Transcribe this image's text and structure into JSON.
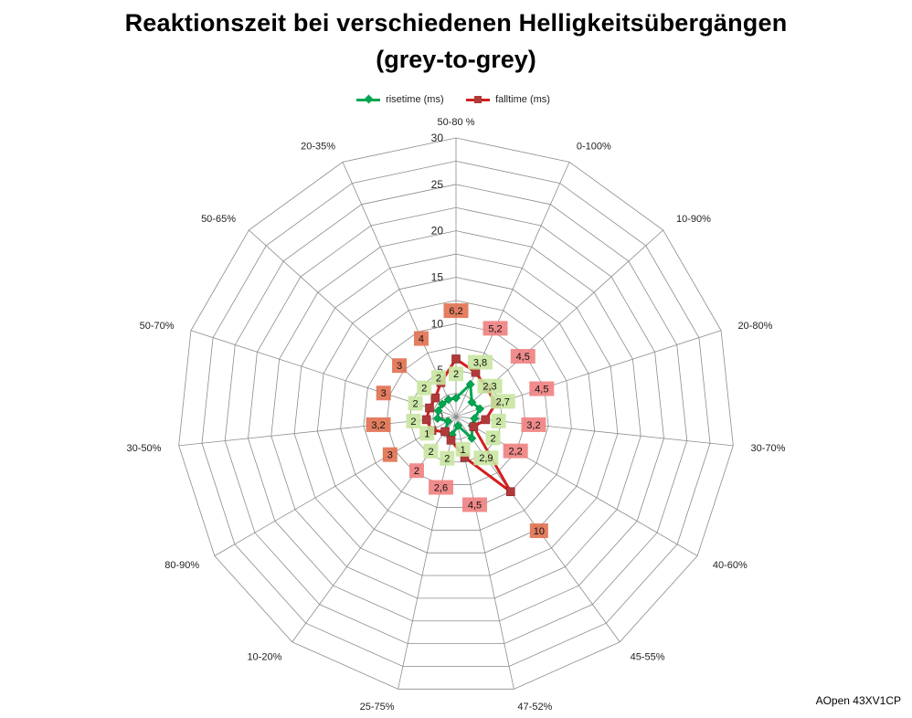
{
  "chart_data": {
    "type": "radar",
    "title": "Reaktionszeit bei verschiedenen Helligkeitsübergängen",
    "subtitle": "(grey-to-grey)",
    "categories": [
      "50-80 %",
      "0-100%",
      "10-90%",
      "20-80%",
      "30-70%",
      "40-60%",
      "45-55%",
      "47-52%",
      "25-75%",
      "10-20%",
      "80-90%",
      "30-50%",
      "50-70%",
      "50-65%",
      "20-35%"
    ],
    "rlim": [
      0,
      30
    ],
    "rticks": [
      0,
      5,
      10,
      15,
      20,
      25,
      30
    ],
    "rtick_labels": [
      "0",
      "5",
      "10",
      "15",
      "20",
      "25",
      "30"
    ],
    "grid": true,
    "legend_position": "top",
    "series": [
      {
        "name": "risetime (ms)",
        "color": "#00a651",
        "marker": "diamond",
        "label_bg": "#c8e6a0",
        "values": [
          2,
          3.8,
          2.3,
          2.7,
          2,
          2,
          2.9,
          1,
          2,
          2,
          1,
          2,
          2,
          2,
          2
        ],
        "labels": [
          "2",
          "3,8",
          "2,3",
          "2,7",
          "2",
          "2",
          "2,9",
          "1",
          "2",
          "2",
          "1",
          "2",
          "2",
          "2",
          "2"
        ]
      },
      {
        "name": "falltime (ms)",
        "color": "#d21f1f",
        "marker": "square",
        "label_bg": "#f08080",
        "label_bg_alt": "#e07050",
        "values": [
          6.2,
          5.2,
          4.5,
          4.5,
          3.2,
          2.2,
          10,
          4.5,
          2.6,
          2,
          3,
          3.2,
          3,
          3,
          4
        ],
        "labels": [
          "6,2",
          "5,2",
          "4,5",
          "4,5",
          "3,2",
          "2,2",
          "10",
          "4,5",
          "2,6",
          "2",
          "3",
          "3,2",
          "3",
          "3",
          "4"
        ]
      }
    ]
  },
  "brand": "AOpen 43XV1CP"
}
